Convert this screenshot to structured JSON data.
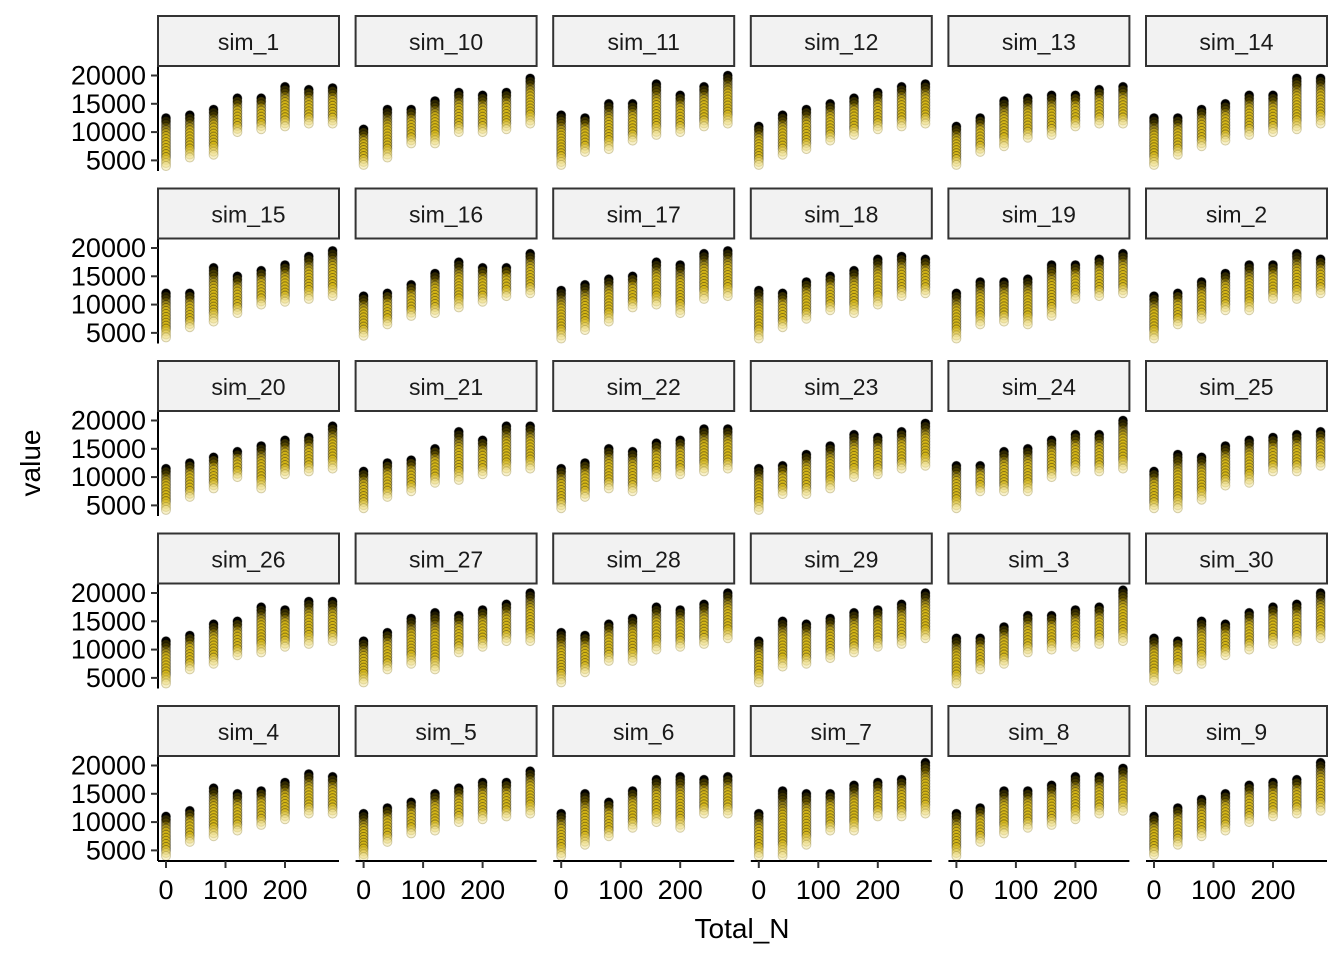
{
  "chart_data": {
    "type": "scatter",
    "facet_layout": "wrap 6 columns x 5 rows",
    "xlabel": "Total_N",
    "ylabel": "value",
    "x_ticks": [
      0,
      100,
      200
    ],
    "y_ticks": [
      5000,
      10000,
      15000,
      20000
    ],
    "xlim": [
      -10,
      295
    ],
    "ylim": [
      3300,
      21500
    ],
    "x_groups": [
      0,
      40,
      80,
      120,
      160,
      200,
      240,
      280
    ],
    "colors": {
      "high": "#000000",
      "mid": "#d4b000",
      "low": "#f3e6a0"
    },
    "note": "each group lists [min, max] of the simulated values drawn as a vertical stack of points",
    "panels": [
      {
        "name": "sim_1",
        "groups": [
          [
            4000,
            12500
          ],
          [
            5500,
            13000
          ],
          [
            6000,
            14000
          ],
          [
            10000,
            16000
          ],
          [
            10500,
            16000
          ],
          [
            11000,
            18000
          ],
          [
            11500,
            17500
          ],
          [
            11500,
            17800
          ]
        ]
      },
      {
        "name": "sim_10",
        "groups": [
          [
            4200,
            10500
          ],
          [
            5500,
            14000
          ],
          [
            8000,
            14000
          ],
          [
            8000,
            15500
          ],
          [
            10000,
            17000
          ],
          [
            10000,
            16500
          ],
          [
            10500,
            17000
          ],
          [
            11500,
            19500
          ]
        ]
      },
      {
        "name": "sim_11",
        "groups": [
          [
            4200,
            13000
          ],
          [
            6500,
            12500
          ],
          [
            7000,
            15000
          ],
          [
            8500,
            15000
          ],
          [
            9500,
            18500
          ],
          [
            10000,
            16500
          ],
          [
            11000,
            18000
          ],
          [
            11500,
            20000
          ]
        ]
      },
      {
        "name": "sim_12",
        "groups": [
          [
            4200,
            11000
          ],
          [
            6000,
            13000
          ],
          [
            7000,
            14000
          ],
          [
            8500,
            15000
          ],
          [
            9500,
            16000
          ],
          [
            10500,
            17000
          ],
          [
            11000,
            18000
          ],
          [
            11500,
            18500
          ]
        ]
      },
      {
        "name": "sim_13",
        "groups": [
          [
            4200,
            11000
          ],
          [
            6500,
            12500
          ],
          [
            7500,
            15500
          ],
          [
            9000,
            16000
          ],
          [
            9500,
            16500
          ],
          [
            11000,
            16500
          ],
          [
            11500,
            17500
          ],
          [
            11500,
            18000
          ]
        ]
      },
      {
        "name": "sim_14",
        "groups": [
          [
            4200,
            12500
          ],
          [
            6000,
            12500
          ],
          [
            7500,
            14000
          ],
          [
            8500,
            15000
          ],
          [
            9500,
            16500
          ],
          [
            10000,
            16500
          ],
          [
            10500,
            19500
          ],
          [
            11500,
            19500
          ]
        ]
      },
      {
        "name": "sim_15",
        "groups": [
          [
            4200,
            12000
          ],
          [
            6000,
            12000
          ],
          [
            7000,
            16500
          ],
          [
            8500,
            15000
          ],
          [
            10000,
            16000
          ],
          [
            10500,
            17000
          ],
          [
            11000,
            18500
          ],
          [
            11500,
            19500
          ]
        ]
      },
      {
        "name": "sim_16",
        "groups": [
          [
            4500,
            11500
          ],
          [
            6500,
            12000
          ],
          [
            8000,
            13500
          ],
          [
            8500,
            15500
          ],
          [
            9500,
            17500
          ],
          [
            10500,
            16500
          ],
          [
            11500,
            16500
          ],
          [
            12000,
            19000
          ]
        ]
      },
      {
        "name": "sim_17",
        "groups": [
          [
            4000,
            12500
          ],
          [
            5500,
            13500
          ],
          [
            7000,
            14500
          ],
          [
            9500,
            15000
          ],
          [
            10000,
            17500
          ],
          [
            8500,
            17000
          ],
          [
            11000,
            19000
          ],
          [
            11500,
            19500
          ]
        ]
      },
      {
        "name": "sim_18",
        "groups": [
          [
            4000,
            12500
          ],
          [
            6000,
            12000
          ],
          [
            7500,
            14000
          ],
          [
            9000,
            15000
          ],
          [
            8500,
            16000
          ],
          [
            10000,
            18000
          ],
          [
            11500,
            18500
          ],
          [
            12000,
            18000
          ]
        ]
      },
      {
        "name": "sim_19",
        "groups": [
          [
            4000,
            12000
          ],
          [
            6500,
            14000
          ],
          [
            7000,
            14000
          ],
          [
            6500,
            14500
          ],
          [
            8000,
            17000
          ],
          [
            11000,
            17000
          ],
          [
            11500,
            18000
          ],
          [
            12000,
            19000
          ]
        ]
      },
      {
        "name": "sim_2",
        "groups": [
          [
            4000,
            11500
          ],
          [
            6500,
            12000
          ],
          [
            7500,
            14000
          ],
          [
            9000,
            15500
          ],
          [
            9000,
            17000
          ],
          [
            11000,
            17000
          ],
          [
            11000,
            19000
          ],
          [
            12000,
            18000
          ]
        ]
      },
      {
        "name": "sim_20",
        "groups": [
          [
            4200,
            11500
          ],
          [
            6500,
            12500
          ],
          [
            8000,
            13500
          ],
          [
            10000,
            14500
          ],
          [
            8000,
            15500
          ],
          [
            10500,
            16500
          ],
          [
            11000,
            17000
          ],
          [
            11500,
            19000
          ]
        ]
      },
      {
        "name": "sim_21",
        "groups": [
          [
            4500,
            11000
          ],
          [
            6500,
            12500
          ],
          [
            7500,
            13000
          ],
          [
            9000,
            15000
          ],
          [
            9500,
            18000
          ],
          [
            10500,
            16500
          ],
          [
            11000,
            19000
          ],
          [
            11500,
            19000
          ]
        ]
      },
      {
        "name": "sim_22",
        "groups": [
          [
            4500,
            11500
          ],
          [
            6500,
            12500
          ],
          [
            8000,
            15000
          ],
          [
            7500,
            14500
          ],
          [
            10000,
            16000
          ],
          [
            10500,
            16500
          ],
          [
            11000,
            18500
          ],
          [
            11500,
            18500
          ]
        ]
      },
      {
        "name": "sim_23",
        "groups": [
          [
            4200,
            11500
          ],
          [
            7000,
            12000
          ],
          [
            7000,
            14000
          ],
          [
            8000,
            15500
          ],
          [
            10000,
            17500
          ],
          [
            10500,
            17000
          ],
          [
            11500,
            18000
          ],
          [
            12000,
            19500
          ]
        ]
      },
      {
        "name": "sim_24",
        "groups": [
          [
            4500,
            12000
          ],
          [
            7500,
            12000
          ],
          [
            7500,
            14500
          ],
          [
            7500,
            15000
          ],
          [
            10000,
            16500
          ],
          [
            11000,
            17500
          ],
          [
            11000,
            17500
          ],
          [
            11500,
            20000
          ]
        ]
      },
      {
        "name": "sim_25",
        "groups": [
          [
            4500,
            11000
          ],
          [
            4500,
            14000
          ],
          [
            6000,
            13500
          ],
          [
            8500,
            15500
          ],
          [
            9000,
            16500
          ],
          [
            11000,
            17000
          ],
          [
            11000,
            17500
          ],
          [
            12000,
            18000
          ]
        ]
      },
      {
        "name": "sim_26",
        "groups": [
          [
            4000,
            11500
          ],
          [
            6500,
            12500
          ],
          [
            7500,
            14500
          ],
          [
            9000,
            15000
          ],
          [
            9500,
            17500
          ],
          [
            10500,
            17000
          ],
          [
            11000,
            18500
          ],
          [
            11500,
            18500
          ]
        ]
      },
      {
        "name": "sim_27",
        "groups": [
          [
            4200,
            11500
          ],
          [
            6500,
            13000
          ],
          [
            7500,
            15500
          ],
          [
            6500,
            16500
          ],
          [
            9500,
            16000
          ],
          [
            10500,
            17000
          ],
          [
            11500,
            18000
          ],
          [
            11500,
            20000
          ]
        ]
      },
      {
        "name": "sim_28",
        "groups": [
          [
            4200,
            13000
          ],
          [
            6000,
            12500
          ],
          [
            8000,
            14500
          ],
          [
            8000,
            15500
          ],
          [
            10000,
            17500
          ],
          [
            10500,
            17000
          ],
          [
            11000,
            18000
          ],
          [
            12000,
            20000
          ]
        ]
      },
      {
        "name": "sim_29",
        "groups": [
          [
            4200,
            11500
          ],
          [
            7000,
            15000
          ],
          [
            7500,
            14500
          ],
          [
            8500,
            15500
          ],
          [
            9500,
            16500
          ],
          [
            10500,
            17000
          ],
          [
            11000,
            18000
          ],
          [
            12000,
            20000
          ]
        ]
      },
      {
        "name": "sim_3",
        "groups": [
          [
            4000,
            12000
          ],
          [
            6500,
            12000
          ],
          [
            7500,
            14000
          ],
          [
            9500,
            16000
          ],
          [
            10000,
            16000
          ],
          [
            10500,
            17000
          ],
          [
            11000,
            17500
          ],
          [
            11500,
            20500
          ]
        ]
      },
      {
        "name": "sim_30",
        "groups": [
          [
            4500,
            12000
          ],
          [
            6500,
            11500
          ],
          [
            7500,
            15000
          ],
          [
            9000,
            14500
          ],
          [
            10000,
            16500
          ],
          [
            11000,
            17500
          ],
          [
            11500,
            18000
          ],
          [
            12000,
            20000
          ]
        ]
      },
      {
        "name": "sim_4",
        "groups": [
          [
            4000,
            11000
          ],
          [
            6500,
            12000
          ],
          [
            7500,
            16000
          ],
          [
            8500,
            15000
          ],
          [
            9500,
            15500
          ],
          [
            10500,
            17000
          ],
          [
            11500,
            18500
          ],
          [
            11500,
            18000
          ]
        ]
      },
      {
        "name": "sim_5",
        "groups": [
          [
            3800,
            11500
          ],
          [
            6500,
            12500
          ],
          [
            8000,
            13500
          ],
          [
            8500,
            15000
          ],
          [
            10000,
            16000
          ],
          [
            10500,
            17000
          ],
          [
            11000,
            17000
          ],
          [
            11500,
            19000
          ]
        ]
      },
      {
        "name": "sim_6",
        "groups": [
          [
            4000,
            11500
          ],
          [
            6000,
            15000
          ],
          [
            7500,
            13500
          ],
          [
            9000,
            15500
          ],
          [
            10000,
            17500
          ],
          [
            9000,
            18000
          ],
          [
            11500,
            17500
          ],
          [
            11500,
            18000
          ]
        ]
      },
      {
        "name": "sim_7",
        "groups": [
          [
            4000,
            11500
          ],
          [
            4000,
            15500
          ],
          [
            6000,
            15000
          ],
          [
            8500,
            15000
          ],
          [
            8500,
            16500
          ],
          [
            11000,
            17000
          ],
          [
            11000,
            17500
          ],
          [
            11500,
            20500
          ]
        ]
      },
      {
        "name": "sim_8",
        "groups": [
          [
            4000,
            11500
          ],
          [
            6500,
            12500
          ],
          [
            8000,
            15500
          ],
          [
            9000,
            15500
          ],
          [
            9500,
            16500
          ],
          [
            10500,
            18000
          ],
          [
            11500,
            18000
          ],
          [
            12000,
            19500
          ]
        ]
      },
      {
        "name": "sim_9",
        "groups": [
          [
            4200,
            11000
          ],
          [
            6000,
            12500
          ],
          [
            7500,
            14000
          ],
          [
            8500,
            15000
          ],
          [
            10000,
            16500
          ],
          [
            11000,
            17000
          ],
          [
            11500,
            17500
          ],
          [
            12000,
            20500
          ]
        ]
      }
    ]
  }
}
